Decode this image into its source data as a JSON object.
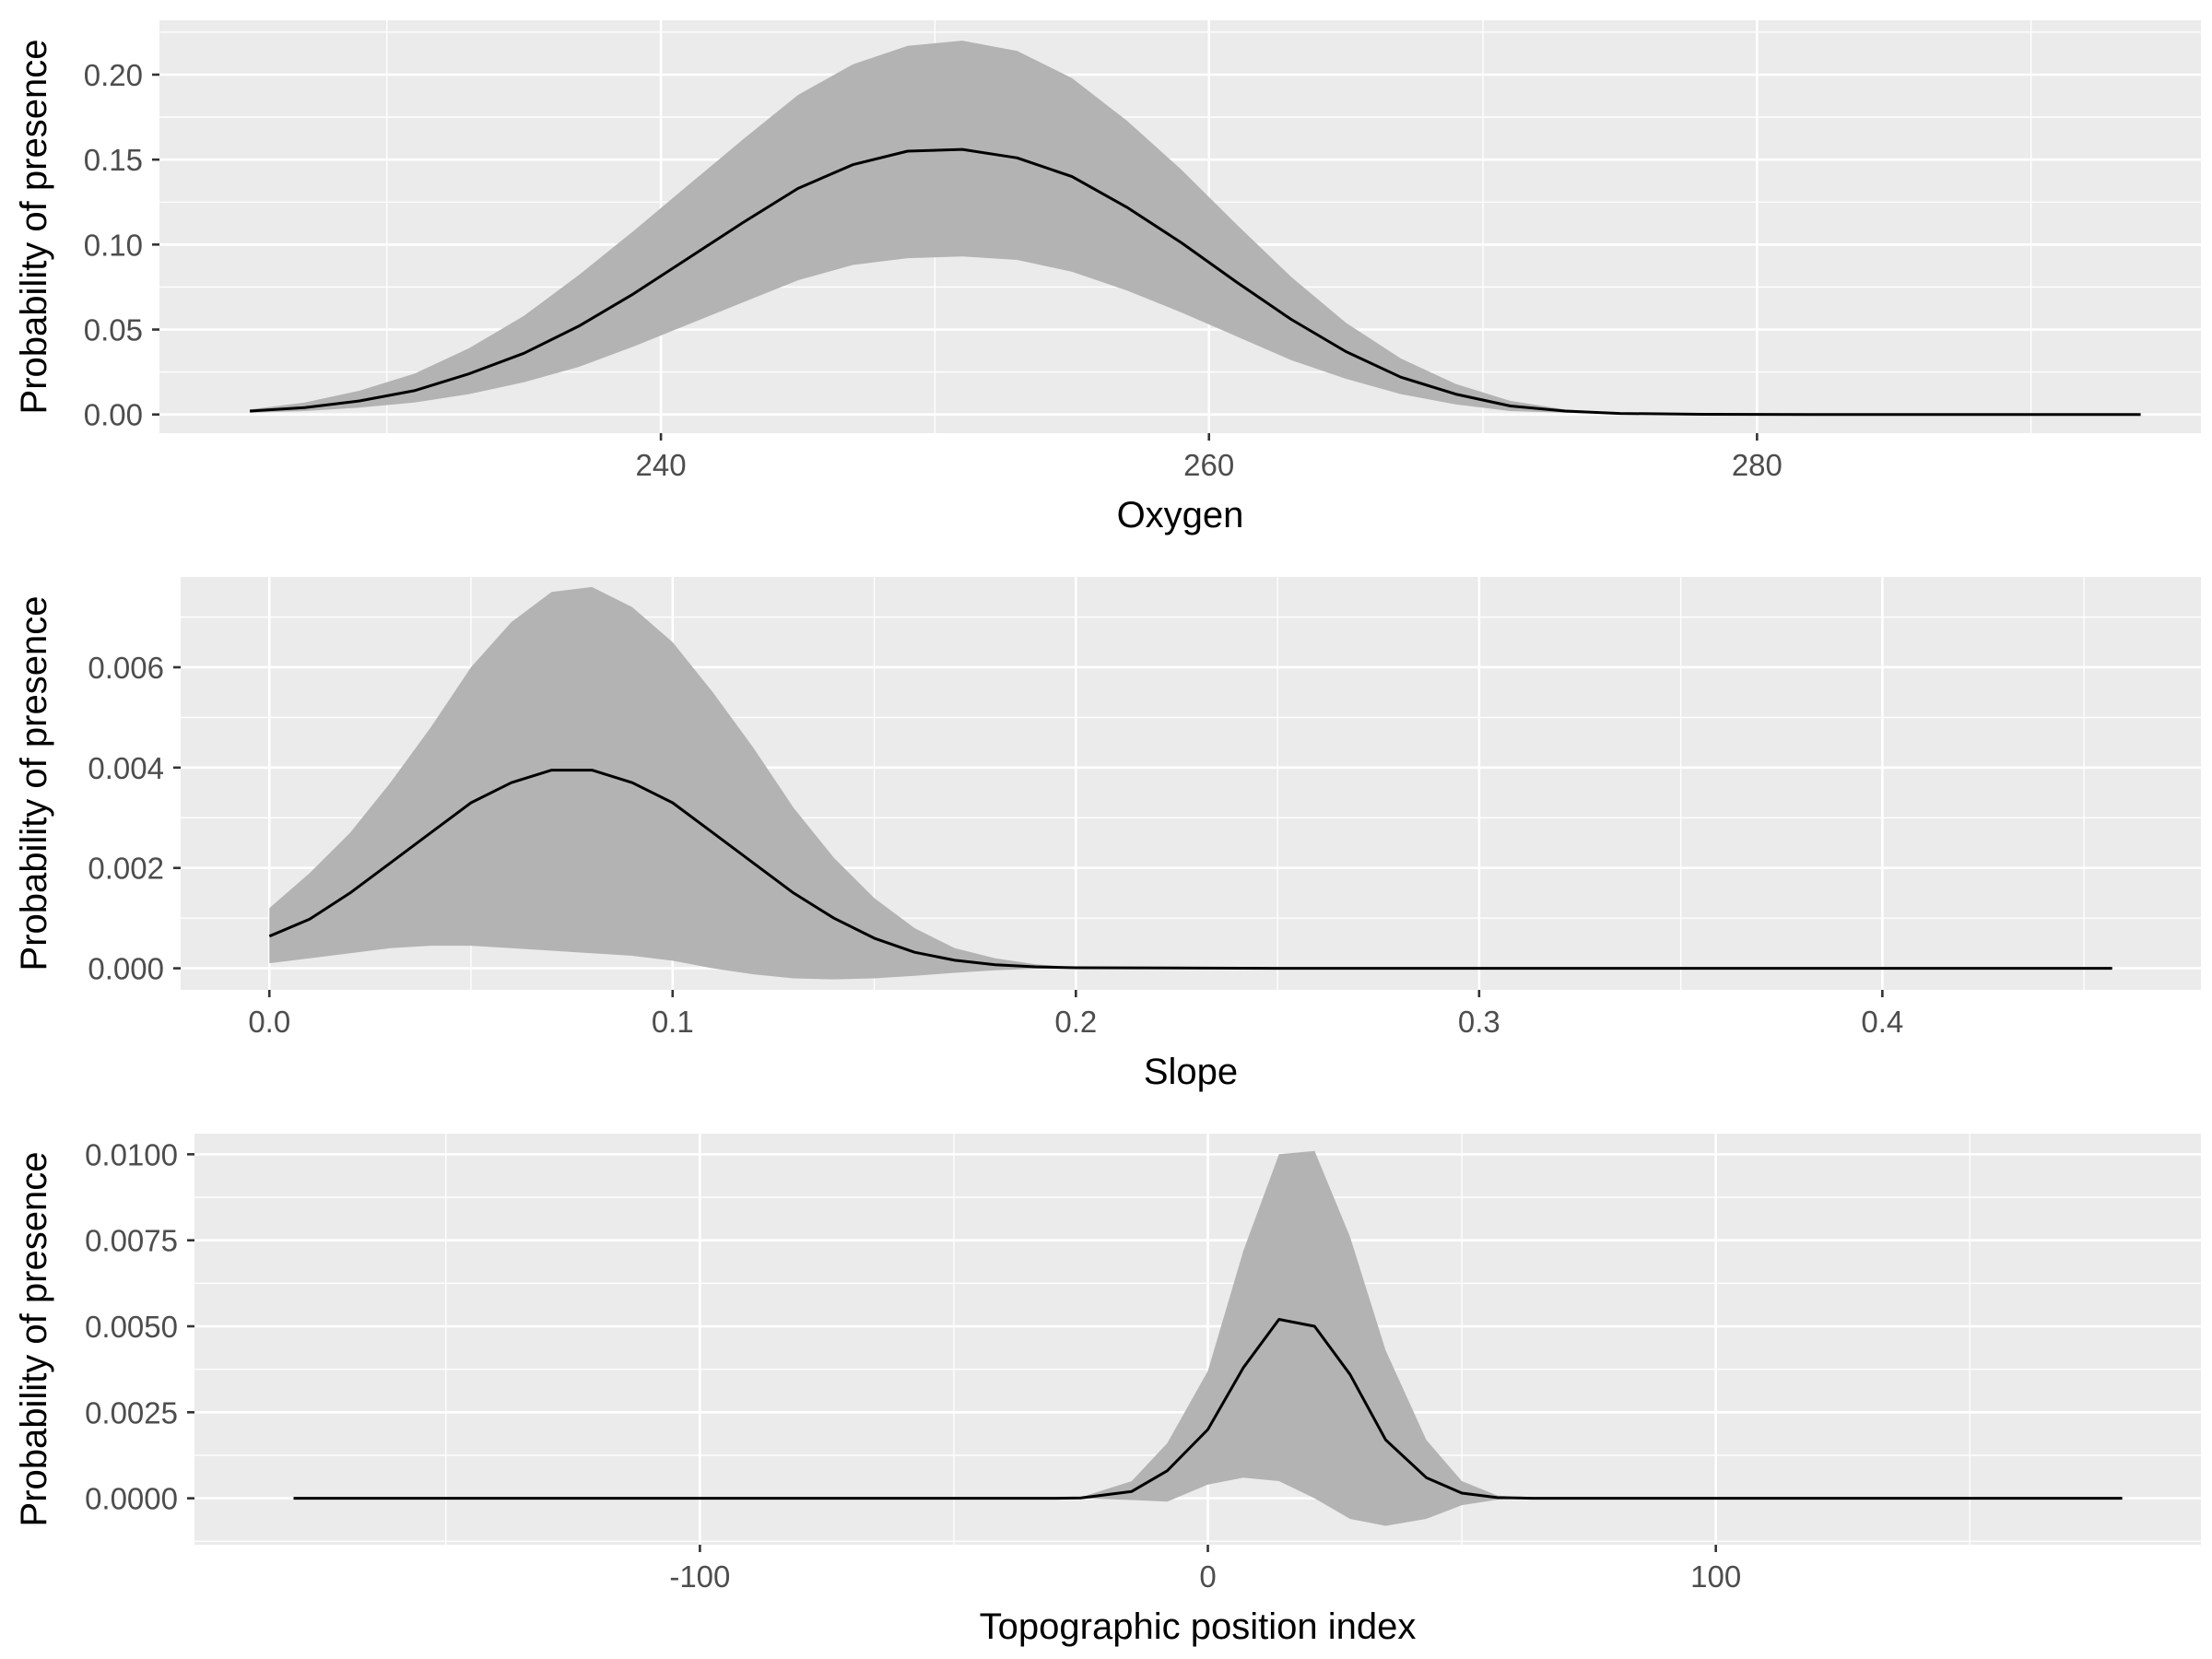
{
  "chart_data": [
    {
      "type": "line",
      "xlabel": "Oxygen",
      "ylabel": "Probability of presence",
      "xlim": [
        221.7,
        296.2
      ],
      "ylim": [
        -0.011,
        0.232
      ],
      "x_ticks": [
        240,
        260,
        280
      ],
      "x_tick_labels": [
        "240",
        "260",
        "280"
      ],
      "y_ticks": [
        0,
        0.05,
        0.1,
        0.15,
        0.2
      ],
      "y_tick_labels": [
        "0.00",
        "0.05",
        "0.10",
        "0.15",
        "0.20"
      ],
      "grid": true,
      "series": [
        {
          "x": [
            225.0,
            227.0,
            229.0,
            231.0,
            233.0,
            235.0,
            237.0,
            239.0,
            241.0,
            243.0,
            245.0,
            247.0,
            249.0,
            251.0,
            253.0,
            255.0,
            257.0,
            259.0,
            261.0,
            263.0,
            265.0,
            267.0,
            269.0,
            271.0,
            273.0,
            275.0,
            278.0,
            282.0,
            286.0,
            290.0,
            294.0
          ],
          "y": [
            0.002,
            0.004,
            0.008,
            0.014,
            0.024,
            0.036,
            0.052,
            0.071,
            0.092,
            0.113,
            0.133,
            0.147,
            0.155,
            0.156,
            0.151,
            0.14,
            0.122,
            0.101,
            0.078,
            0.056,
            0.037,
            0.022,
            0.012,
            0.005,
            0.002,
            0.0006,
            0.0001,
            0.0,
            0.0,
            0.0,
            0.0
          ],
          "lower": [
            0.001,
            0.002,
            0.004,
            0.007,
            0.012,
            0.019,
            0.028,
            0.04,
            0.053,
            0.066,
            0.079,
            0.088,
            0.092,
            0.093,
            0.091,
            0.084,
            0.073,
            0.06,
            0.046,
            0.032,
            0.021,
            0.012,
            0.006,
            0.002,
            0.001,
            0.0003,
            0.0,
            0.0,
            0.0,
            0.0,
            0.0
          ],
          "upper": [
            0.003,
            0.007,
            0.014,
            0.024,
            0.039,
            0.058,
            0.082,
            0.108,
            0.135,
            0.162,
            0.188,
            0.206,
            0.217,
            0.22,
            0.214,
            0.198,
            0.173,
            0.144,
            0.112,
            0.081,
            0.054,
            0.033,
            0.018,
            0.008,
            0.003,
            0.001,
            0.0002,
            0.0,
            0.0,
            0.0,
            0.0
          ]
        }
      ]
    },
    {
      "type": "line",
      "xlabel": "Slope",
      "ylabel": "Probability of presence",
      "xlim": [
        -0.022,
        0.479
      ],
      "ylim": [
        -0.00043,
        0.0078
      ],
      "x_ticks": [
        0.0,
        0.1,
        0.2,
        0.3,
        0.4
      ],
      "x_tick_labels": [
        "0.0",
        "0.1",
        "0.2",
        "0.3",
        "0.4"
      ],
      "y_ticks": [
        0.0,
        0.002,
        0.004,
        0.006
      ],
      "y_tick_labels": [
        "0.000",
        "0.002",
        "0.004",
        "0.006"
      ],
      "grid": true,
      "series": [
        {
          "x": [
            0.0,
            0.01,
            0.02,
            0.03,
            0.04,
            0.05,
            0.06,
            0.07,
            0.08,
            0.09,
            0.1,
            0.11,
            0.12,
            0.13,
            0.14,
            0.15,
            0.16,
            0.17,
            0.18,
            0.19,
            0.2,
            0.25,
            0.3,
            0.35,
            0.4,
            0.457
          ],
          "y": [
            0.00064,
            0.00098,
            0.0015,
            0.0021,
            0.0027,
            0.0033,
            0.0037,
            0.00395,
            0.00395,
            0.0037,
            0.0033,
            0.0027,
            0.0021,
            0.0015,
            0.001,
            0.0006,
            0.00032,
            0.00016,
            7e-05,
            3e-05,
            1e-05,
            0.0,
            0.0,
            0.0,
            0.0,
            0.0
          ],
          "lower": [
            0.0001,
            0.0002,
            0.0003,
            0.0004,
            0.00045,
            0.00045,
            0.0004,
            0.00035,
            0.0003,
            0.00025,
            0.00015,
            0.0,
            -0.00012,
            -0.0002,
            -0.00022,
            -0.0002,
            -0.00015,
            -9e-05,
            -4e-05,
            -1e-05,
            0.0,
            0.0,
            0.0,
            0.0,
            0.0,
            0.0
          ],
          "upper": [
            0.0012,
            0.0019,
            0.0027,
            0.0037,
            0.0048,
            0.006,
            0.0069,
            0.0075,
            0.0076,
            0.0072,
            0.0065,
            0.0055,
            0.0044,
            0.0032,
            0.0022,
            0.0014,
            0.0008,
            0.0004,
            0.0002,
            8e-05,
            2e-05,
            0.0,
            0.0,
            0.0,
            0.0,
            0.0
          ]
        }
      ]
    },
    {
      "type": "line",
      "xlabel": "Topographic position index",
      "ylabel": "Probability of presence",
      "xlim": [
        -199.5,
        195.5
      ],
      "ylim": [
        -0.00135,
        0.0106
      ],
      "x_ticks": [
        -100,
        0,
        100
      ],
      "x_tick_labels": [
        "-100",
        "0",
        "100"
      ],
      "y_ticks": [
        0.0,
        0.0025,
        0.005,
        0.0075,
        0.01
      ],
      "y_tick_labels": [
        "0.0000",
        "0.0025",
        "0.0050",
        "0.0075",
        "0.0100"
      ],
      "grid": true,
      "series": [
        {
          "x": [
            -180,
            -30,
            -25,
            -15,
            -8,
            0,
            7,
            14,
            21,
            28,
            35,
            43,
            50,
            57,
            64,
            100,
            150,
            180
          ],
          "y": [
            0.0,
            0.0,
            1e-05,
            0.0002,
            0.0008,
            0.002,
            0.0038,
            0.0052,
            0.005,
            0.0036,
            0.0017,
            0.0006,
            0.00015,
            2e-05,
            0.0,
            0.0,
            0.0,
            0.0
          ],
          "lower": [
            0.0,
            0.0,
            0.0,
            -5e-05,
            -0.0001,
            0.0004,
            0.0006,
            0.0005,
            0.0,
            -0.0006,
            -0.0008,
            -0.0006,
            -0.0002,
            -4e-05,
            0.0,
            0.0,
            0.0,
            0.0
          ],
          "upper": [
            0.0,
            0.0,
            3e-05,
            0.0005,
            0.0016,
            0.0037,
            0.0072,
            0.01,
            0.0101,
            0.0076,
            0.0043,
            0.0017,
            0.0005,
            8e-05,
            0.0,
            0.0,
            0.0,
            0.0
          ]
        }
      ]
    }
  ]
}
